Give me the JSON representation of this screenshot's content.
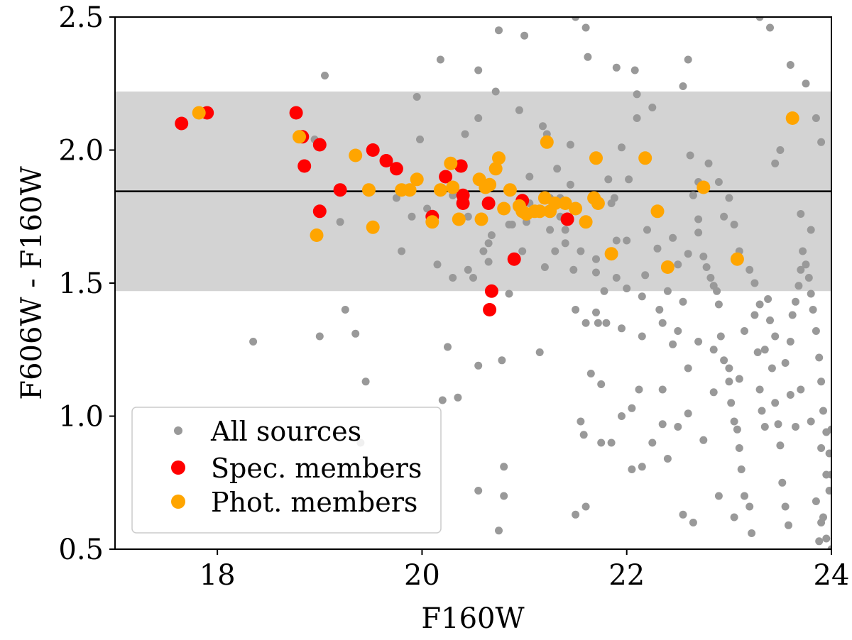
{
  "chart_data": {
    "type": "scatter",
    "xlabel": "F160W",
    "ylabel": "F606W - F160W",
    "xlim": [
      17,
      24
    ],
    "ylim": [
      0.5,
      2.5
    ],
    "xticks": [
      "18",
      "20",
      "22",
      "24"
    ],
    "xtick_values": [
      18,
      20,
      22,
      24
    ],
    "yticks": [
      "0.5",
      "1.0",
      "1.5",
      "2.0",
      "2.5"
    ],
    "ytick_values": [
      0.5,
      1.0,
      1.5,
      2.0,
      2.5
    ],
    "grid": false,
    "legend_position": "lower-left",
    "band": {
      "y_low": 1.47,
      "y_high": 2.22,
      "color": "#d3d3d3"
    },
    "hline": {
      "y": 1.845,
      "color": "#000000"
    },
    "series": [
      {
        "name": "All sources",
        "color": "#999999",
        "points": [
          [
            18.35,
            1.28
          ],
          [
            19.05,
            2.28
          ],
          [
            19.2,
            1.73
          ],
          [
            19.25,
            1.4
          ],
          [
            19.35,
            1.31
          ],
          [
            19.45,
            1.13
          ],
          [
            19.4,
            0.9
          ],
          [
            18.85,
            2.05
          ],
          [
            19.0,
            1.3
          ],
          [
            18.95,
            2.04
          ],
          [
            19.75,
            1.82
          ],
          [
            19.8,
            1.62
          ],
          [
            19.95,
            2.2
          ],
          [
            19.98,
            2.04
          ],
          [
            19.9,
            1.75
          ],
          [
            20.05,
            1.78
          ],
          [
            20.15,
            1.57
          ],
          [
            20.18,
            2.34
          ],
          [
            20.2,
            1.06
          ],
          [
            20.25,
            1.26
          ],
          [
            20.3,
            1.52
          ],
          [
            20.35,
            1.07
          ],
          [
            20.3,
            1.83
          ],
          [
            20.42,
            2.06
          ],
          [
            20.45,
            1.55
          ],
          [
            20.5,
            1.52
          ],
          [
            20.55,
            2.3
          ],
          [
            20.55,
            2.12
          ],
          [
            20.55,
            1.19
          ],
          [
            20.6,
            1.62
          ],
          [
            20.65,
            1.65
          ],
          [
            20.68,
            1.68
          ],
          [
            20.72,
            2.22
          ],
          [
            20.75,
            2.45
          ],
          [
            20.78,
            1.21
          ],
          [
            20.8,
            0.81
          ],
          [
            20.8,
            0.7
          ],
          [
            20.75,
            0.57
          ],
          [
            20.85,
            1.46
          ],
          [
            20.88,
            1.72
          ],
          [
            20.95,
            2.15
          ],
          [
            20.98,
            1.62
          ],
          [
            21.0,
            2.43
          ],
          [
            21.02,
            1.73
          ],
          [
            21.05,
            1.8
          ],
          [
            21.1,
            1.78
          ],
          [
            21.15,
            1.24
          ],
          [
            21.18,
            2.09
          ],
          [
            21.2,
            1.56
          ],
          [
            21.22,
            2.06
          ],
          [
            21.25,
            1.7
          ],
          [
            21.3,
            1.62
          ],
          [
            21.32,
            1.93
          ],
          [
            21.35,
            1.75
          ],
          [
            21.35,
            1.82
          ],
          [
            21.4,
            1.65
          ],
          [
            21.45,
            2.02
          ],
          [
            21.45,
            1.87
          ],
          [
            21.5,
            1.4
          ],
          [
            21.5,
            2.5
          ],
          [
            21.48,
            1.55
          ],
          [
            21.55,
            0.98
          ],
          [
            21.58,
            0.93
          ],
          [
            21.6,
            1.35
          ],
          [
            21.62,
            2.35
          ],
          [
            21.6,
            2.46
          ],
          [
            21.65,
            1.16
          ],
          [
            21.68,
            1.83
          ],
          [
            21.7,
            1.39
          ],
          [
            21.72,
            1.35
          ],
          [
            21.7,
            1.54
          ],
          [
            21.75,
            0.9
          ],
          [
            21.78,
            1.47
          ],
          [
            21.8,
            1.35
          ],
          [
            21.82,
            1.89
          ],
          [
            21.85,
            1.8
          ],
          [
            21.88,
            1.82
          ],
          [
            21.9,
            2.31
          ],
          [
            21.95,
            2.01
          ],
          [
            21.9,
            1.66
          ],
          [
            21.95,
            1.33
          ],
          [
            22.0,
            1.48
          ],
          [
            22.0,
            1.66
          ],
          [
            22.02,
            1.89
          ],
          [
            22.05,
            1.03
          ],
          [
            22.08,
            2.3
          ],
          [
            22.1,
            2.21
          ],
          [
            22.1,
            2.12
          ],
          [
            22.12,
            1.1
          ],
          [
            22.15,
            0.81
          ],
          [
            22.15,
            1.3
          ],
          [
            22.18,
            1.53
          ],
          [
            22.2,
            1.7
          ],
          [
            22.25,
            2.16
          ],
          [
            22.3,
            1.63
          ],
          [
            22.32,
            1.4
          ],
          [
            22.35,
            1.1
          ],
          [
            22.4,
            1.47
          ],
          [
            22.45,
            1.67
          ],
          [
            22.5,
            1.57
          ],
          [
            22.5,
            1.32
          ],
          [
            22.55,
            1.43
          ],
          [
            22.55,
            2.24
          ],
          [
            22.6,
            2.34
          ],
          [
            22.6,
            1.18
          ],
          [
            22.62,
            1.98
          ],
          [
            22.65,
            1.83
          ],
          [
            22.7,
            1.74
          ],
          [
            22.7,
            1.88
          ],
          [
            22.75,
            1.6
          ],
          [
            22.78,
            1.56
          ],
          [
            22.82,
            1.52
          ],
          [
            22.85,
            1.49
          ],
          [
            22.88,
            1.47
          ],
          [
            22.9,
            1.42
          ],
          [
            22.92,
            1.3
          ],
          [
            22.95,
            1.21
          ],
          [
            23.0,
            1.13
          ],
          [
            23.02,
            1.05
          ],
          [
            23.05,
            0.98
          ],
          [
            23.08,
            0.95
          ],
          [
            23.1,
            0.88
          ],
          [
            23.12,
            0.8
          ],
          [
            23.15,
            0.7
          ],
          [
            23.2,
            0.66
          ],
          [
            23.22,
            0.56
          ],
          [
            23.25,
            1.38
          ],
          [
            23.28,
            1.24
          ],
          [
            23.3,
            1.1
          ],
          [
            23.32,
            1.02
          ],
          [
            23.35,
            0.96
          ],
          [
            23.38,
            1.44
          ],
          [
            23.4,
            1.36
          ],
          [
            23.42,
            1.18
          ],
          [
            23.45,
            1.05
          ],
          [
            23.48,
            0.97
          ],
          [
            23.5,
            0.89
          ],
          [
            23.52,
            0.75
          ],
          [
            23.55,
            0.66
          ],
          [
            23.58,
            0.59
          ],
          [
            23.6,
            1.28
          ],
          [
            23.62,
            1.38
          ],
          [
            23.65,
            1.43
          ],
          [
            23.68,
            1.49
          ],
          [
            23.7,
            1.55
          ],
          [
            23.72,
            1.62
          ],
          [
            23.75,
            1.57
          ],
          [
            23.78,
            1.52
          ],
          [
            23.8,
            1.46
          ],
          [
            23.82,
            1.4
          ],
          [
            23.85,
            1.32
          ],
          [
            23.88,
            1.22
          ],
          [
            23.9,
            1.13
          ],
          [
            23.92,
            1.02
          ],
          [
            23.95,
            0.94
          ],
          [
            23.98,
            0.86
          ],
          [
            24.0,
            0.78
          ],
          [
            23.85,
            0.68
          ],
          [
            23.9,
            0.6
          ],
          [
            23.95,
            0.54
          ],
          [
            23.3,
            2.5
          ],
          [
            23.4,
            2.46
          ],
          [
            23.6,
            2.32
          ],
          [
            23.75,
            2.25
          ],
          [
            23.85,
            2.12
          ],
          [
            23.9,
            2.03
          ],
          [
            23.5,
            2.0
          ],
          [
            23.45,
            1.95
          ],
          [
            23.7,
            1.76
          ],
          [
            23.8,
            1.7
          ],
          [
            22.8,
            1.95
          ],
          [
            22.9,
            1.88
          ],
          [
            23.0,
            1.82
          ],
          [
            23.05,
            1.72
          ],
          [
            23.1,
            1.62
          ],
          [
            23.2,
            1.55
          ],
          [
            23.25,
            1.5
          ],
          [
            22.95,
            1.75
          ],
          [
            22.7,
            1.69
          ],
          [
            22.6,
            1.61
          ],
          [
            21.75,
            1.12
          ],
          [
            21.95,
            1.0
          ],
          [
            22.25,
            0.9
          ],
          [
            22.4,
            0.84
          ],
          [
            22.5,
            0.96
          ],
          [
            22.65,
            0.6
          ],
          [
            22.75,
            0.91
          ],
          [
            22.9,
            0.7
          ],
          [
            23.05,
            0.62
          ],
          [
            22.55,
            0.63
          ],
          [
            21.5,
            0.63
          ],
          [
            21.6,
            0.66
          ],
          [
            21.85,
            0.9
          ],
          [
            22.05,
            0.8
          ],
          [
            22.35,
            0.97
          ],
          [
            22.6,
            1.01
          ],
          [
            22.85,
            1.09
          ],
          [
            23.1,
            1.14
          ],
          [
            23.35,
            1.25
          ],
          [
            23.6,
            1.08
          ],
          [
            20.55,
            0.72
          ],
          [
            20.45,
            1.75
          ],
          [
            20.65,
            1.58
          ],
          [
            20.85,
            1.72
          ],
          [
            21.05,
            1.9
          ],
          [
            21.25,
            1.82
          ],
          [
            21.4,
            1.7
          ],
          [
            21.55,
            1.62
          ],
          [
            21.7,
            1.59
          ],
          [
            21.9,
            1.52
          ],
          [
            22.15,
            1.45
          ],
          [
            22.35,
            1.35
          ],
          [
            22.45,
            1.27
          ],
          [
            22.7,
            1.28
          ],
          [
            22.85,
            1.25
          ],
          [
            23.0,
            1.18
          ],
          [
            23.15,
            1.32
          ],
          [
            23.3,
            1.42
          ],
          [
            23.45,
            1.3
          ],
          [
            23.55,
            1.2
          ],
          [
            23.7,
            1.1
          ],
          [
            23.8,
            0.98
          ],
          [
            23.9,
            0.88
          ],
          [
            24.0,
            0.95
          ],
          [
            23.95,
            0.78
          ],
          [
            23.98,
            0.72
          ],
          [
            23.92,
            0.62
          ],
          [
            23.88,
            0.53
          ],
          [
            24.0,
            0.5
          ],
          [
            23.65,
            0.96
          ]
        ]
      },
      {
        "name": "Spec. members",
        "color": "#ff0000",
        "points": [
          [
            17.65,
            2.1
          ],
          [
            17.9,
            2.14
          ],
          [
            18.77,
            2.14
          ],
          [
            18.83,
            2.05
          ],
          [
            18.85,
            1.94
          ],
          [
            19.0,
            2.02
          ],
          [
            19.0,
            1.77
          ],
          [
            19.2,
            1.85
          ],
          [
            19.52,
            2.0
          ],
          [
            19.65,
            1.96
          ],
          [
            19.75,
            1.93
          ],
          [
            20.1,
            1.75
          ],
          [
            20.23,
            1.9
          ],
          [
            20.38,
            1.94
          ],
          [
            20.4,
            1.83
          ],
          [
            20.4,
            1.8
          ],
          [
            20.65,
            1.8
          ],
          [
            20.68,
            1.47
          ],
          [
            20.66,
            1.4
          ],
          [
            20.9,
            1.59
          ],
          [
            20.98,
            1.81
          ],
          [
            21.42,
            1.74
          ]
        ]
      },
      {
        "name": "Phot. members",
        "color": "#ffa500",
        "points": [
          [
            17.82,
            2.14
          ],
          [
            18.8,
            2.05
          ],
          [
            18.97,
            1.68
          ],
          [
            19.35,
            1.98
          ],
          [
            19.48,
            1.85
          ],
          [
            19.52,
            1.71
          ],
          [
            19.8,
            1.85
          ],
          [
            19.88,
            1.85
          ],
          [
            19.95,
            1.89
          ],
          [
            20.1,
            1.73
          ],
          [
            20.18,
            1.85
          ],
          [
            20.28,
            1.95
          ],
          [
            20.3,
            1.86
          ],
          [
            20.36,
            1.74
          ],
          [
            20.56,
            1.89
          ],
          [
            20.58,
            1.74
          ],
          [
            20.62,
            1.86
          ],
          [
            20.66,
            1.87
          ],
          [
            20.72,
            1.93
          ],
          [
            20.75,
            1.97
          ],
          [
            20.8,
            1.78
          ],
          [
            20.86,
            1.85
          ],
          [
            20.95,
            1.79
          ],
          [
            20.98,
            1.77
          ],
          [
            21.02,
            1.76
          ],
          [
            21.1,
            1.77
          ],
          [
            21.15,
            1.77
          ],
          [
            21.2,
            1.82
          ],
          [
            21.22,
            2.03
          ],
          [
            21.25,
            1.77
          ],
          [
            21.3,
            1.8
          ],
          [
            21.4,
            1.8
          ],
          [
            21.5,
            1.78
          ],
          [
            21.6,
            1.73
          ],
          [
            21.68,
            1.82
          ],
          [
            21.7,
            1.97
          ],
          [
            21.72,
            1.8
          ],
          [
            21.85,
            1.61
          ],
          [
            22.18,
            1.97
          ],
          [
            22.3,
            1.77
          ],
          [
            22.4,
            1.56
          ],
          [
            22.75,
            1.86
          ],
          [
            23.08,
            1.59
          ],
          [
            23.62,
            2.12
          ]
        ]
      }
    ]
  }
}
